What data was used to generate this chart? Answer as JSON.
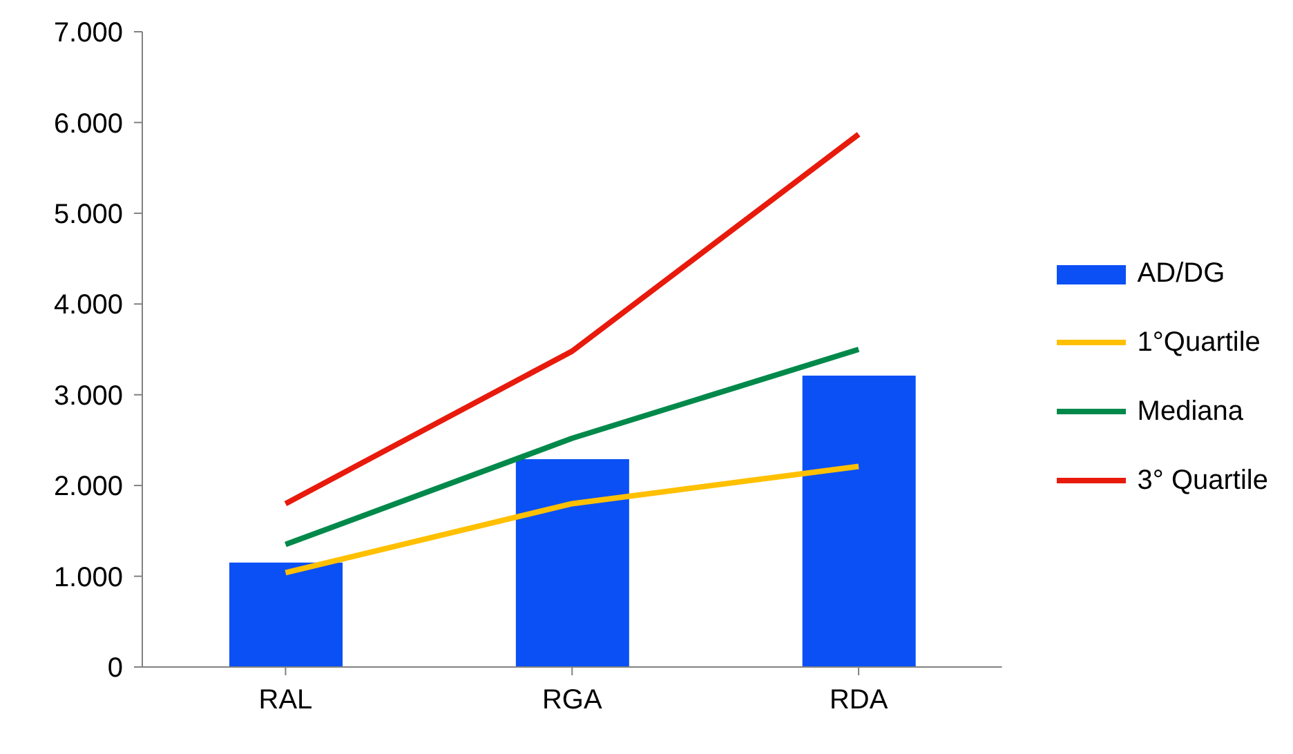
{
  "chart_data": {
    "type": "bar",
    "categories": [
      "RAL",
      "RGA",
      "RDA"
    ],
    "series": [
      {
        "name": "AD/DG",
        "color": "#0a50f5",
        "values": [
          1150,
          2290,
          3210
        ]
      },
      {
        "name": "1°Quartile",
        "type": "line",
        "color": "#ffc000",
        "values": [
          1040,
          1800,
          2210
        ]
      },
      {
        "name": "Mediana",
        "type": "line",
        "color": "#00894a",
        "values": [
          1350,
          2520,
          3500
        ]
      },
      {
        "name": "3° Quartile",
        "type": "line",
        "color": "#e81a0c",
        "values": [
          1800,
          3480,
          5870
        ]
      }
    ],
    "ylim": [
      0,
      7000
    ],
    "yticks": [
      0,
      {
        "value": 1000,
        "label": "1.000"
      },
      {
        "value": 2000,
        "label": "2.000"
      },
      {
        "value": 3000,
        "label": "3.000"
      },
      {
        "value": 4000,
        "label": "4.000"
      },
      {
        "value": 5000,
        "label": "5.000"
      },
      {
        "value": 6000,
        "label": "6.000"
      },
      {
        "value": 7000,
        "label": "7.000"
      }
    ],
    "legend": "right",
    "marker": "none"
  }
}
